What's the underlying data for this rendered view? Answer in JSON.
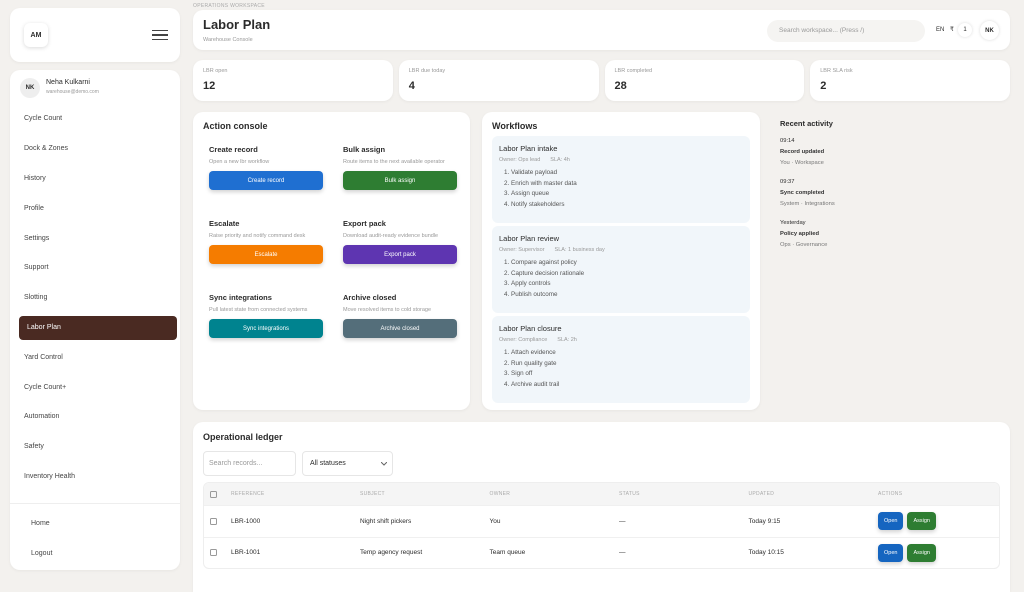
{
  "header": {
    "eyebrow": "OPERATIONS WORKSPACE",
    "title": "Labor Plan",
    "subtitle": "Warehouse Console",
    "search_placeholder": "Search workspace... (Press /)",
    "language": "EN",
    "currency": "₹",
    "notifications": "1",
    "avatar": "NK"
  },
  "sidebar": {
    "logo": "AM",
    "user": {
      "initials": "NK",
      "name": "Neha Kulkarni",
      "email": "warehouse@demo.com"
    },
    "nav": [
      "Cycle Count",
      "Dock & Zones",
      "History",
      "Profile",
      "Settings",
      "Support",
      "Slotting",
      "Labor Plan",
      "Yard Control",
      "Cycle Count+",
      "Automation",
      "Safety",
      "Inventory Health"
    ],
    "footer_nav": [
      "Home",
      "Logout"
    ]
  },
  "kpis": [
    {
      "label": "LBR open",
      "value": 12
    },
    {
      "label": "LBR due today",
      "value": 4
    },
    {
      "label": "LBR completed",
      "value": 28
    },
    {
      "label": "LBR SLA risk",
      "value": 2
    }
  ],
  "action_console": {
    "title": "Action console",
    "actions": [
      {
        "title": "Create record",
        "description": "Open a new lbr workflow",
        "button": "Create record"
      },
      {
        "title": "Bulk assign",
        "description": "Route items to the next available operator",
        "button": "Bulk assign"
      },
      {
        "title": "Escalate",
        "description": "Raise priority and notify command desk",
        "button": "Escalate"
      },
      {
        "title": "Export pack",
        "description": "Download audit-ready evidence bundle",
        "button": "Export pack"
      },
      {
        "title": "Sync integrations",
        "description": "Pull latest state from connected systems",
        "button": "Sync integrations"
      },
      {
        "title": "Archive closed",
        "description": "Move resolved items to cold storage",
        "button": "Archive closed"
      }
    ]
  },
  "workflows": {
    "title": "Workflows",
    "items": [
      {
        "title": "Labor Plan intake",
        "owner": "Owner: Ops lead",
        "sla": "SLA: 4h",
        "steps": [
          "Validate payload",
          "Enrich with master data",
          "Assign queue",
          "Notify stakeholders"
        ]
      },
      {
        "title": "Labor Plan review",
        "owner": "Owner: Supervisor",
        "sla": "SLA: 1 business day",
        "steps": [
          "Compare against policy",
          "Capture decision rationale",
          "Apply controls",
          "Publish outcome"
        ]
      },
      {
        "title": "Labor Plan closure",
        "owner": "Owner: Compliance",
        "sla": "SLA: 2h",
        "steps": [
          "Attach evidence",
          "Run quality gate",
          "Sign off",
          "Archive audit trail"
        ]
      }
    ]
  },
  "recent_activity": {
    "title": "Recent activity",
    "items": [
      {
        "time": "09:14",
        "event": "Record updated",
        "source": "You · Workspace"
      },
      {
        "time": "09:37",
        "event": "Sync completed",
        "source": "System · Integrations"
      },
      {
        "time": "Yesterday",
        "event": "Policy applied",
        "source": "Ops · Governance"
      }
    ]
  },
  "ledger": {
    "title": "Operational ledger",
    "search_placeholder": "Search records...",
    "status_filter": "All statuses",
    "columns": [
      "REFERENCE",
      "SUBJECT",
      "OWNER",
      "STATUS",
      "UPDATED",
      "ACTIONS"
    ],
    "row_actions": [
      "Open",
      "Assign"
    ],
    "rows": [
      [
        "LBR-1000",
        "Night shift pickers",
        "You",
        "—",
        "Today 9:15"
      ],
      [
        "LBR-1001",
        "Temp agency request",
        "Team queue",
        "—",
        "Today 10:15"
      ]
    ]
  }
}
